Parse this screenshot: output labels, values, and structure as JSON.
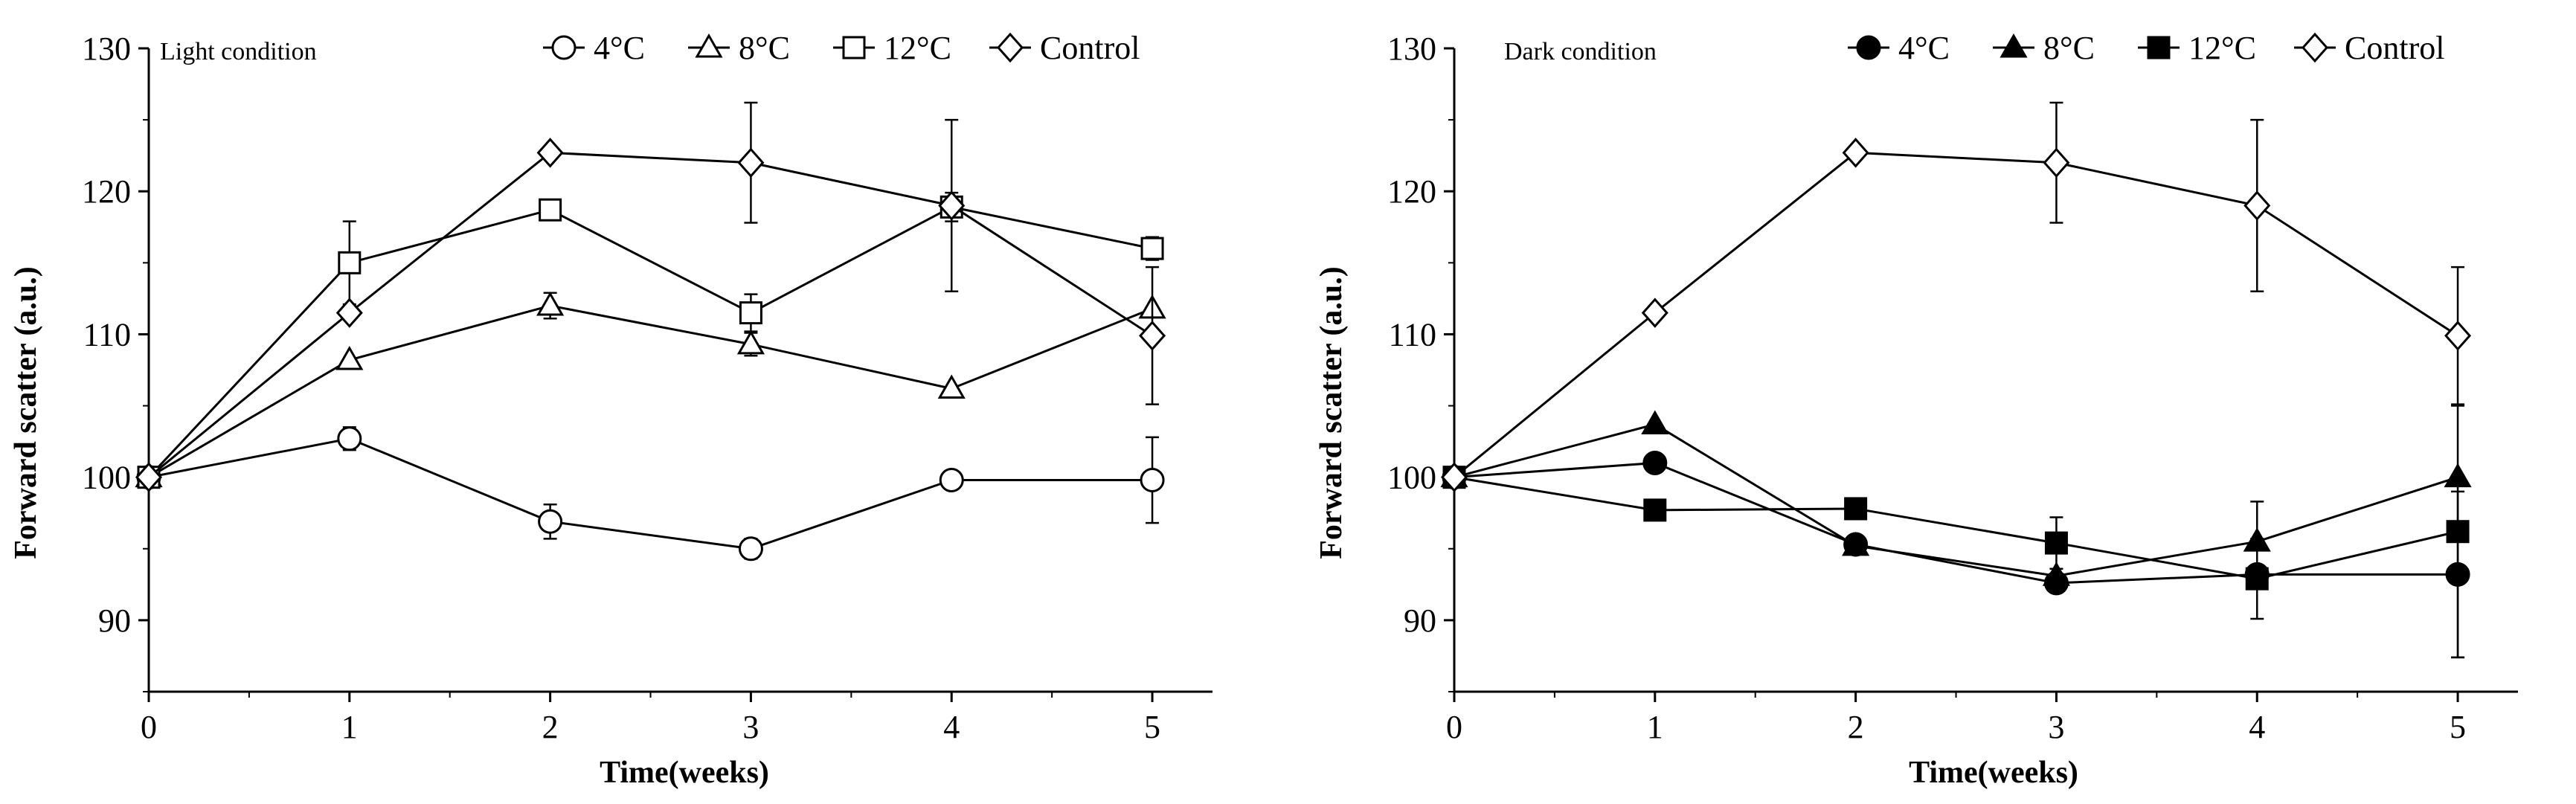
{
  "chart_data": [
    {
      "type": "line",
      "title": "Light condition",
      "xlabel": "Time(weeks)",
      "ylabel": "Forward scatter (a.u.)",
      "x": [
        0,
        1,
        2,
        3,
        4,
        5
      ],
      "xlim": [
        0,
        5.3
      ],
      "ylim": [
        85,
        130
      ],
      "xticks": [
        "0",
        "1",
        "2",
        "3",
        "4",
        "5"
      ],
      "yticks": [
        "90",
        "100",
        "110",
        "120",
        "130"
      ],
      "grid": false,
      "legend_position": "top",
      "series": [
        {
          "name": "4°C",
          "marker": "circle-open",
          "values": [
            100,
            102.7,
            96.9,
            95.0,
            99.8,
            99.8
          ],
          "errors": [
            0,
            0.8,
            1.2,
            0.7,
            0,
            3.0
          ]
        },
        {
          "name": "8°C",
          "marker": "triangle-open",
          "values": [
            100,
            108.2,
            112.0,
            109.3,
            106.2,
            111.8
          ],
          "errors": [
            0,
            0,
            0.9,
            0.8,
            0,
            0
          ]
        },
        {
          "name": "12°C",
          "marker": "square-open",
          "values": [
            100,
            115.0,
            118.7,
            111.5,
            118.9,
            116.0
          ],
          "errors": [
            0,
            2.9,
            0,
            1.3,
            1.0,
            0.8
          ]
        },
        {
          "name": "Control",
          "marker": "diamond-open",
          "values": [
            100,
            111.5,
            122.7,
            122.0,
            119.0,
            109.9
          ],
          "errors": [
            0,
            0,
            0,
            4.2,
            6.0,
            4.8
          ]
        }
      ]
    },
    {
      "type": "line",
      "title": "Dark condition",
      "xlabel": "Time(weeks)",
      "ylabel": "Forward scatter (a.u.)",
      "x": [
        0,
        1,
        2,
        3,
        4,
        5
      ],
      "xlim": [
        0,
        5.3
      ],
      "ylim": [
        85,
        130
      ],
      "xticks": [
        "0",
        "1",
        "2",
        "3",
        "4",
        "5"
      ],
      "yticks": [
        "90",
        "100",
        "110",
        "120",
        "130"
      ],
      "grid": false,
      "legend_position": "top",
      "series": [
        {
          "name": "4°C",
          "marker": "circle-filled",
          "values": [
            100,
            101.0,
            95.3,
            92.6,
            93.2,
            93.2
          ],
          "errors": [
            0,
            0,
            0,
            0,
            0,
            5.8
          ]
        },
        {
          "name": "8°C",
          "marker": "triangle-filled",
          "values": [
            100,
            103.7,
            95.2,
            93.1,
            95.5,
            100.0
          ],
          "errors": [
            0,
            0,
            0,
            0,
            2.8,
            0
          ]
        },
        {
          "name": "12°C",
          "marker": "square-filled",
          "values": [
            100,
            97.7,
            97.8,
            95.4,
            92.9,
            96.2
          ],
          "errors": [
            0,
            0,
            0,
            1.8,
            2.8,
            8.8
          ]
        },
        {
          "name": "Control",
          "marker": "diamond-open",
          "values": [
            100,
            111.5,
            122.7,
            122.0,
            119.0,
            109.9
          ],
          "errors": [
            0,
            0,
            0,
            4.2,
            6.0,
            4.8
          ]
        }
      ]
    }
  ]
}
